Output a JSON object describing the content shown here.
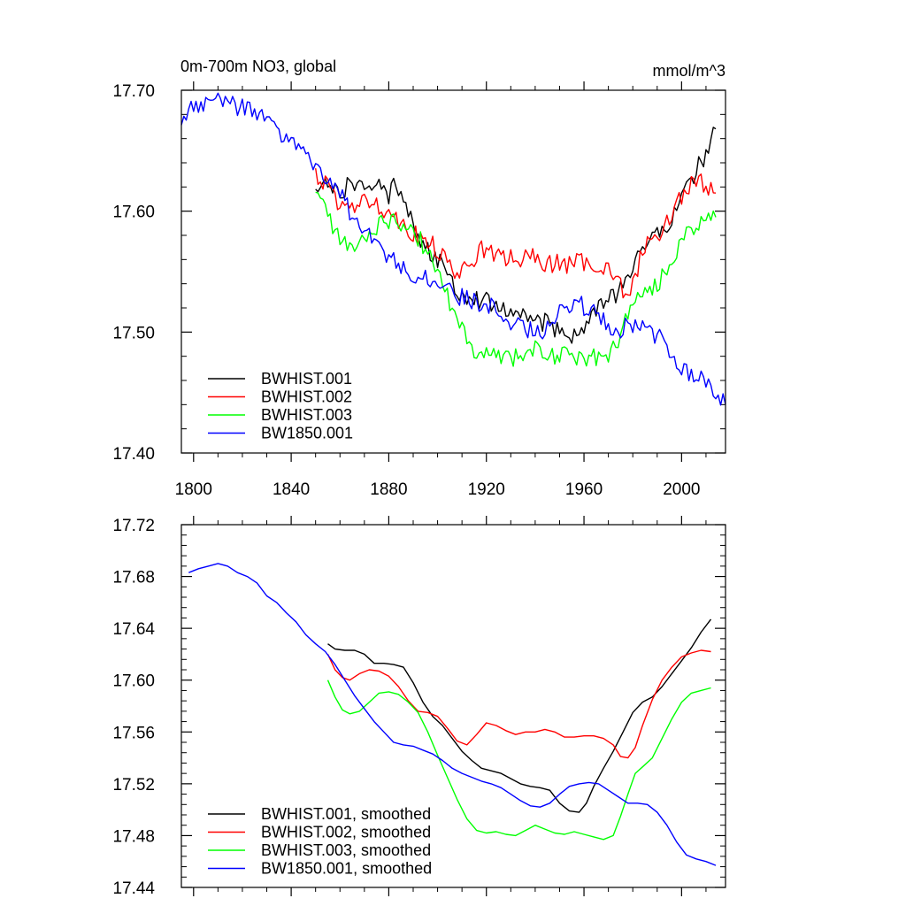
{
  "chart_data": [
    {
      "type": "line",
      "title": "0m-700m NO3, global",
      "units": "mmol/m^3",
      "xlim": [
        1795,
        2018
      ],
      "ylim": [
        17.4,
        17.7
      ],
      "xticks": [
        1800,
        1840,
        1880,
        1920,
        1960,
        2000
      ],
      "xtick_labels": [
        "1800",
        "1840",
        "1880",
        "1920",
        "1960",
        "2000"
      ],
      "yticks": [
        17.4,
        17.5,
        17.6,
        17.7
      ],
      "ytick_labels": [
        "17.40",
        "17.50",
        "17.60",
        "17.70"
      ],
      "legend_position": "bottom-left",
      "series": [
        {
          "name": "BWHIST.001",
          "color": "#000000",
          "x": [
            1850,
            1855,
            1858,
            1861,
            1864,
            1867,
            1870,
            1873,
            1876,
            1879,
            1882,
            1885,
            1888,
            1890,
            1893,
            1896,
            1899,
            1902,
            1905,
            1908,
            1911,
            1914,
            1917,
            1920,
            1925,
            1930,
            1935,
            1940,
            1945,
            1950,
            1955,
            1960,
            1963,
            1966,
            1970,
            1973,
            1976,
            1979,
            1982,
            1985,
            1990,
            1995,
            2000,
            2005,
            2010,
            2014
          ],
          "y": [
            17.622,
            17.626,
            17.62,
            17.614,
            17.626,
            17.622,
            17.624,
            17.612,
            17.622,
            17.61,
            17.62,
            17.618,
            17.602,
            17.59,
            17.576,
            17.568,
            17.56,
            17.555,
            17.545,
            17.535,
            17.53,
            17.532,
            17.527,
            17.525,
            17.522,
            17.518,
            17.513,
            17.51,
            17.507,
            17.5,
            17.498,
            17.5,
            17.512,
            17.522,
            17.527,
            17.53,
            17.536,
            17.55,
            17.565,
            17.575,
            17.58,
            17.592,
            17.61,
            17.63,
            17.648,
            17.668
          ]
        },
        {
          "name": "BWHIST.002",
          "color": "#ff0000",
          "x": [
            1850,
            1854,
            1858,
            1862,
            1866,
            1870,
            1874,
            1878,
            1882,
            1886,
            1890,
            1894,
            1898,
            1902,
            1906,
            1910,
            1914,
            1918,
            1922,
            1926,
            1930,
            1934,
            1938,
            1942,
            1946,
            1950,
            1954,
            1958,
            1962,
            1966,
            1970,
            1974,
            1977,
            1980,
            1983,
            1986,
            1990,
            1994,
            1998,
            2002,
            2006,
            2010,
            2014
          ],
          "y": [
            17.63,
            17.622,
            17.612,
            17.6,
            17.604,
            17.607,
            17.609,
            17.602,
            17.596,
            17.59,
            17.582,
            17.575,
            17.572,
            17.562,
            17.552,
            17.548,
            17.56,
            17.568,
            17.566,
            17.56,
            17.562,
            17.56,
            17.562,
            17.558,
            17.557,
            17.557,
            17.556,
            17.558,
            17.556,
            17.557,
            17.553,
            17.545,
            17.525,
            17.54,
            17.56,
            17.575,
            17.58,
            17.59,
            17.608,
            17.618,
            17.625,
            17.622,
            17.615
          ]
        },
        {
          "name": "BWHIST.003",
          "color": "#00ff00",
          "x": [
            1850,
            1854,
            1858,
            1862,
            1866,
            1870,
            1874,
            1878,
            1882,
            1886,
            1890,
            1894,
            1898,
            1902,
            1906,
            1910,
            1914,
            1918,
            1922,
            1926,
            1930,
            1935,
            1940,
            1945,
            1950,
            1955,
            1960,
            1965,
            1970,
            1974,
            1978,
            1982,
            1986,
            1990,
            1994,
            1998,
            2002,
            2006,
            2010,
            2014
          ],
          "y": [
            17.62,
            17.605,
            17.58,
            17.574,
            17.57,
            17.578,
            17.586,
            17.592,
            17.592,
            17.59,
            17.585,
            17.572,
            17.56,
            17.54,
            17.52,
            17.503,
            17.485,
            17.48,
            17.483,
            17.482,
            17.479,
            17.481,
            17.487,
            17.482,
            17.479,
            17.481,
            17.48,
            17.479,
            17.478,
            17.495,
            17.515,
            17.528,
            17.535,
            17.538,
            17.552,
            17.568,
            17.582,
            17.59,
            17.594,
            17.595
          ]
        },
        {
          "name": "BW1850.001",
          "color": "#0000ff",
          "x": [
            1795,
            1799,
            1803,
            1807,
            1811,
            1815,
            1819,
            1823,
            1827,
            1831,
            1835,
            1839,
            1843,
            1847,
            1851,
            1855,
            1859,
            1863,
            1867,
            1871,
            1875,
            1879,
            1883,
            1887,
            1891,
            1895,
            1899,
            1903,
            1907,
            1911,
            1915,
            1919,
            1923,
            1927,
            1931,
            1935,
            1939,
            1943,
            1947,
            1951,
            1955,
            1959,
            1963,
            1967,
            1971,
            1975,
            1979,
            1983,
            1987,
            1991,
            1995,
            1999,
            2003,
            2007,
            2011,
            2015,
            2018
          ],
          "y": [
            17.678,
            17.683,
            17.69,
            17.688,
            17.692,
            17.69,
            17.686,
            17.682,
            17.678,
            17.672,
            17.662,
            17.656,
            17.65,
            17.644,
            17.636,
            17.628,
            17.618,
            17.603,
            17.59,
            17.582,
            17.572,
            17.565,
            17.556,
            17.552,
            17.548,
            17.546,
            17.542,
            17.535,
            17.53,
            17.528,
            17.526,
            17.522,
            17.52,
            17.515,
            17.508,
            17.504,
            17.5,
            17.502,
            17.512,
            17.52,
            17.523,
            17.522,
            17.518,
            17.513,
            17.504,
            17.503,
            17.505,
            17.505,
            17.502,
            17.495,
            17.487,
            17.475,
            17.465,
            17.462,
            17.456,
            17.45,
            17.44
          ]
        }
      ]
    },
    {
      "type": "line",
      "xlim": [
        1795,
        2018
      ],
      "ylim": [
        17.44,
        17.72
      ],
      "xticks": [
        1800,
        1840,
        1880,
        1920,
        1960,
        2000
      ],
      "yticks": [
        17.44,
        17.48,
        17.52,
        17.56,
        17.6,
        17.64,
        17.68,
        17.72
      ],
      "ytick_labels": [
        "17.44",
        "17.48",
        "17.52",
        "17.56",
        "17.60",
        "17.64",
        "17.68",
        "17.72"
      ],
      "legend_position": "bottom-left",
      "series": [
        {
          "name": "BWHIST.001, smoothed",
          "color": "#000000",
          "x": [
            1855,
            1858,
            1862,
            1866,
            1870,
            1874,
            1878,
            1882,
            1886,
            1890,
            1894,
            1898,
            1902,
            1906,
            1910,
            1914,
            1918,
            1922,
            1926,
            1930,
            1934,
            1938,
            1942,
            1946,
            1950,
            1954,
            1958,
            1961,
            1964,
            1968,
            1972,
            1976,
            1980,
            1984,
            1988,
            1992,
            1996,
            2000,
            2004,
            2008,
            2012
          ],
          "y": [
            17.628,
            17.624,
            17.623,
            17.623,
            17.62,
            17.613,
            17.613,
            17.612,
            17.61,
            17.598,
            17.583,
            17.572,
            17.565,
            17.555,
            17.545,
            17.538,
            17.532,
            17.53,
            17.528,
            17.524,
            17.52,
            17.518,
            17.517,
            17.515,
            17.505,
            17.499,
            17.498,
            17.505,
            17.518,
            17.532,
            17.545,
            17.56,
            17.575,
            17.583,
            17.587,
            17.595,
            17.605,
            17.615,
            17.625,
            17.637,
            17.647
          ]
        },
        {
          "name": "BWHIST.002, smoothed",
          "color": "#ff0000",
          "x": [
            1855,
            1858,
            1861,
            1864,
            1868,
            1872,
            1876,
            1880,
            1884,
            1888,
            1892,
            1896,
            1900,
            1904,
            1908,
            1912,
            1916,
            1920,
            1924,
            1928,
            1932,
            1936,
            1940,
            1944,
            1948,
            1952,
            1956,
            1960,
            1964,
            1968,
            1972,
            1975,
            1978,
            1981,
            1984,
            1988,
            1992,
            1996,
            2000,
            2004,
            2008,
            2012
          ],
          "y": [
            17.62,
            17.608,
            17.602,
            17.6,
            17.605,
            17.608,
            17.607,
            17.603,
            17.595,
            17.584,
            17.576,
            17.575,
            17.572,
            17.563,
            17.553,
            17.55,
            17.558,
            17.567,
            17.565,
            17.561,
            17.558,
            17.56,
            17.56,
            17.562,
            17.56,
            17.556,
            17.556,
            17.557,
            17.557,
            17.555,
            17.55,
            17.541,
            17.54,
            17.548,
            17.565,
            17.585,
            17.6,
            17.61,
            17.618,
            17.621,
            17.623,
            17.622
          ]
        },
        {
          "name": "BWHIST.003, smoothed",
          "color": "#00ff00",
          "x": [
            1855,
            1858,
            1861,
            1864,
            1868,
            1872,
            1876,
            1880,
            1884,
            1888,
            1892,
            1896,
            1900,
            1904,
            1908,
            1912,
            1916,
            1920,
            1924,
            1928,
            1932,
            1936,
            1940,
            1944,
            1948,
            1952,
            1956,
            1960,
            1964,
            1968,
            1972,
            1975,
            1978,
            1981,
            1984,
            1988,
            1992,
            1996,
            2000,
            2004,
            2008,
            2012
          ],
          "y": [
            17.6,
            17.587,
            17.577,
            17.574,
            17.576,
            17.583,
            17.59,
            17.591,
            17.589,
            17.583,
            17.575,
            17.56,
            17.542,
            17.525,
            17.508,
            17.493,
            17.484,
            17.482,
            17.483,
            17.481,
            17.48,
            17.484,
            17.488,
            17.485,
            17.482,
            17.481,
            17.483,
            17.481,
            17.479,
            17.477,
            17.48,
            17.495,
            17.512,
            17.528,
            17.533,
            17.54,
            17.555,
            17.57,
            17.583,
            17.59,
            17.592,
            17.594
          ]
        },
        {
          "name": "BW1850.001, smoothed",
          "color": "#0000ff",
          "x": [
            1798,
            1802,
            1806,
            1810,
            1814,
            1818,
            1822,
            1826,
            1830,
            1834,
            1838,
            1842,
            1846,
            1850,
            1854,
            1858,
            1862,
            1866,
            1870,
            1874,
            1878,
            1882,
            1886,
            1890,
            1894,
            1898,
            1902,
            1906,
            1910,
            1914,
            1918,
            1922,
            1926,
            1930,
            1934,
            1938,
            1942,
            1946,
            1950,
            1954,
            1958,
            1962,
            1966,
            1970,
            1974,
            1978,
            1982,
            1986,
            1990,
            1994,
            1998,
            2002,
            2006,
            2010,
            2014
          ],
          "y": [
            17.683,
            17.686,
            17.688,
            17.69,
            17.688,
            17.683,
            17.68,
            17.675,
            17.665,
            17.66,
            17.652,
            17.645,
            17.635,
            17.628,
            17.622,
            17.612,
            17.6,
            17.588,
            17.578,
            17.568,
            17.56,
            17.552,
            17.55,
            17.549,
            17.546,
            17.543,
            17.538,
            17.532,
            17.528,
            17.525,
            17.522,
            17.52,
            17.517,
            17.512,
            17.507,
            17.503,
            17.502,
            17.505,
            17.512,
            17.518,
            17.52,
            17.521,
            17.52,
            17.515,
            17.51,
            17.505,
            17.505,
            17.504,
            17.498,
            17.488,
            17.475,
            17.465,
            17.462,
            17.46,
            17.457
          ]
        }
      ]
    }
  ]
}
